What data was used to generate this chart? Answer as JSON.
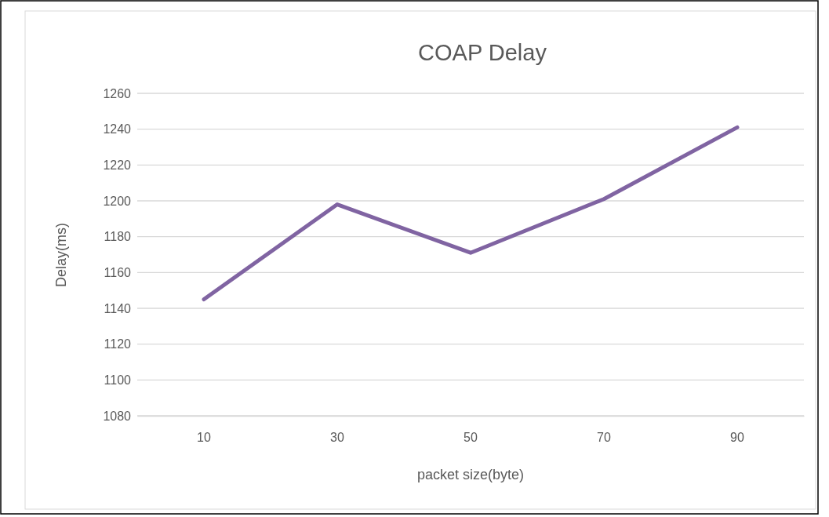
{
  "chart_data": {
    "type": "line",
    "title": "COAP Delay",
    "xlabel": "packet size(byte)",
    "ylabel": "Delay(ms)",
    "categories": [
      "10",
      "30",
      "50",
      "70",
      "90"
    ],
    "series": [
      {
        "color": "#8064a2",
        "values": [
          1145,
          1198,
          1171,
          1201,
          1241
        ]
      }
    ],
    "ylim": [
      1080,
      1260
    ],
    "yticks": [
      1080,
      1100,
      1120,
      1140,
      1160,
      1180,
      1200,
      1220,
      1240,
      1260
    ],
    "grid": "y",
    "marker": "none",
    "line_style": "solid"
  }
}
